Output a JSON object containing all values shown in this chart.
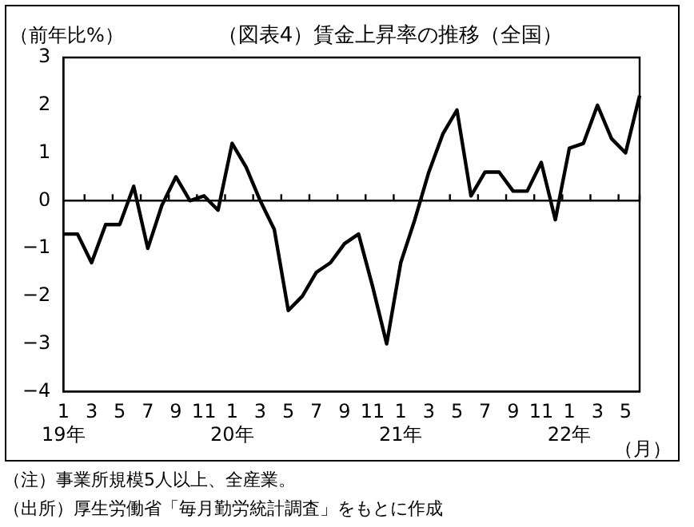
{
  "chart_data": {
    "type": "line",
    "title": "（図表4）賃金上昇率の推移（全国）",
    "ylabel": "（前年比%）",
    "xlabel": "（月）",
    "categories": [
      "1\n19年",
      null,
      "3",
      null,
      "5",
      null,
      "7",
      null,
      "9",
      null,
      "11",
      null,
      "1\n20年",
      null,
      "3",
      null,
      "5",
      null,
      "7",
      null,
      "9",
      null,
      "11",
      null,
      "1\n21年",
      null,
      "3",
      null,
      "5",
      null,
      "7",
      null,
      "9",
      null,
      "11",
      null,
      "1\n22年",
      null,
      "3",
      null,
      "5",
      null
    ],
    "series": [
      {
        "color": "#000000",
        "values": [
          -0.7,
          -0.7,
          -1.3,
          -0.5,
          -0.5,
          0.3,
          -1.0,
          -0.1,
          0.5,
          0.0,
          0.1,
          -0.2,
          1.2,
          0.7,
          0.0,
          -0.6,
          -2.3,
          -2.0,
          -1.5,
          -1.3,
          -0.9,
          -0.7,
          -1.8,
          -3.0,
          -1.3,
          -0.4,
          0.6,
          1.4,
          1.9,
          0.1,
          0.6,
          0.6,
          0.2,
          0.2,
          0.8,
          -0.4,
          1.1,
          1.2,
          2.0,
          1.3,
          1.0,
          2.2
        ]
      }
    ],
    "ylim": [
      -4,
      3
    ],
    "yticks": [
      -4,
      -3,
      -2,
      -1,
      0,
      1,
      2,
      3
    ],
    "ref_lines": [
      {
        "axis": "y",
        "value": 0
      }
    ],
    "grid": false,
    "legend": false,
    "marker": "none",
    "line_style": "solid",
    "annotations": [
      "（注）事業所規模5人以上、全産業。",
      "（出所）厚生労働省「毎月勤労統計調査」をもとに作成"
    ]
  }
}
